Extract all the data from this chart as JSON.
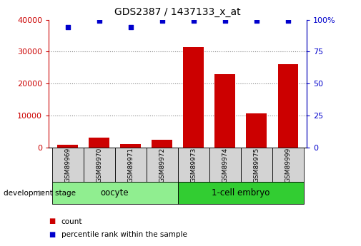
{
  "title": "GDS2387 / 1437133_x_at",
  "categories": [
    "GSM89969",
    "GSM89970",
    "GSM89971",
    "GSM89972",
    "GSM89973",
    "GSM89974",
    "GSM89975",
    "GSM89999"
  ],
  "counts": [
    800,
    3200,
    1100,
    2500,
    31500,
    23000,
    10800,
    26000
  ],
  "percentile": [
    94,
    99,
    94,
    99,
    99,
    99,
    99,
    99
  ],
  "groups": [
    {
      "label": "oocyte",
      "start": 0,
      "end": 4,
      "color": "#90ee90"
    },
    {
      "label": "1-cell embryo",
      "start": 4,
      "end": 8,
      "color": "#32cd32"
    }
  ],
  "bar_color": "#cc0000",
  "dot_color": "#0000cc",
  "left_axis_color": "#cc0000",
  "right_axis_color": "#0000cc",
  "ylim_left": [
    0,
    40000
  ],
  "ylim_right": [
    0,
    100
  ],
  "yticks_left": [
    0,
    10000,
    20000,
    30000,
    40000
  ],
  "yticks_right": [
    0,
    25,
    50,
    75,
    100
  ],
  "ytick_labels_left": [
    "0",
    "10000",
    "20000",
    "30000",
    "40000"
  ],
  "ytick_labels_right": [
    "0",
    "25",
    "50",
    "75",
    "100%"
  ],
  "grid_color": "#888888",
  "background_color": "#ffffff",
  "tick_bg_color": "#d3d3d3",
  "legend_count_label": "count",
  "legend_pct_label": "percentile rank within the sample",
  "dev_stage_label": "development stage"
}
